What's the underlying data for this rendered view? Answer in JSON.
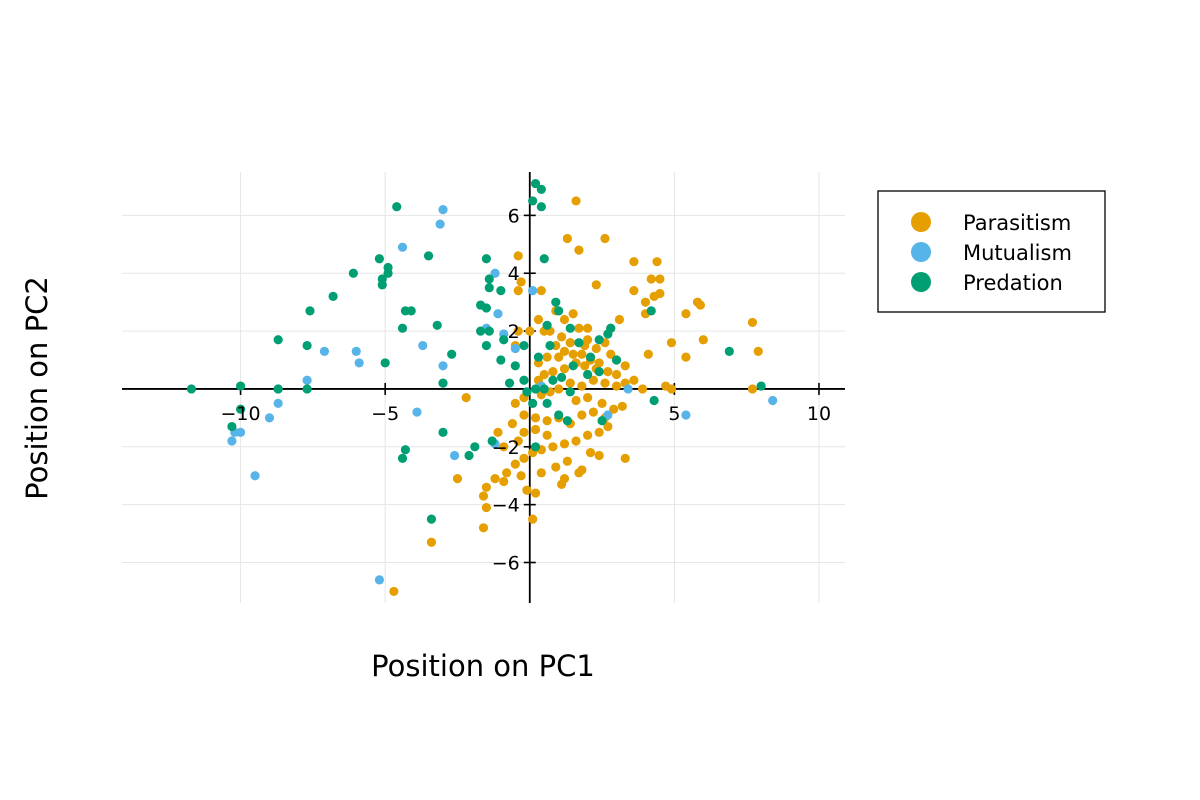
{
  "chart_data": {
    "type": "scatter",
    "title": "",
    "xlabel": "Position on PC1",
    "ylabel": "Position on PC2",
    "xlim": [
      -14.1,
      10.9
    ],
    "ylim": [
      -7.4,
      7.5
    ],
    "xticks": [
      -10,
      -5,
      5,
      10
    ],
    "xtick_labels": [
      "−10",
      "−5",
      "5",
      "10"
    ],
    "yticks": [
      -6,
      -4,
      -2,
      2,
      4,
      6
    ],
    "ytick_labels": [
      "−6",
      "−4",
      "−2",
      "2",
      "4",
      "6"
    ],
    "grid": true,
    "axes_through_origin": true,
    "legend_position": "outside-right-top",
    "series": [
      {
        "name": "Parasitism",
        "color": "#e69f00",
        "points": [
          [
            1.6,
            6.5
          ],
          [
            2.6,
            5.2
          ],
          [
            1.3,
            5.2
          ],
          [
            1.7,
            4.8
          ],
          [
            3.6,
            4.4
          ],
          [
            4.4,
            4.4
          ],
          [
            4.2,
            3.8
          ],
          [
            4.5,
            3.8
          ],
          [
            2.3,
            3.6
          ],
          [
            3.6,
            3.4
          ],
          [
            4.3,
            3.2
          ],
          [
            4.5,
            3.3
          ],
          [
            4.0,
            3.0
          ],
          [
            5.8,
            3.0
          ],
          [
            5.9,
            2.9
          ],
          [
            4.0,
            2.6
          ],
          [
            5.4,
            2.6
          ],
          [
            7.7,
            2.3
          ],
          [
            3.1,
            2.4
          ],
          [
            2.8,
            2.1
          ],
          [
            1.5,
            2.6
          ],
          [
            1.2,
            2.4
          ],
          [
            0.9,
            2.7
          ],
          [
            0.3,
            2.4
          ],
          [
            0.7,
            2.0
          ],
          [
            1.1,
            1.8
          ],
          [
            1.4,
            1.6
          ],
          [
            1.7,
            2.1
          ],
          [
            2.0,
            1.7
          ],
          [
            2.6,
            1.6
          ],
          [
            1.9,
            1.5
          ],
          [
            1.2,
            1.3
          ],
          [
            0.9,
            1.5
          ],
          [
            0.6,
            1.1
          ],
          [
            0.3,
            0.9
          ],
          [
            1.0,
            1.1
          ],
          [
            1.5,
            1.2
          ],
          [
            1.8,
            1.2
          ],
          [
            2.1,
            1.0
          ],
          [
            2.4,
            0.9
          ],
          [
            2.8,
            1.2
          ],
          [
            3.0,
            1.0
          ],
          [
            3.3,
            0.8
          ],
          [
            3.0,
            0.5
          ],
          [
            2.7,
            0.6
          ],
          [
            2.3,
            0.7
          ],
          [
            1.9,
            0.8
          ],
          [
            1.6,
            0.9
          ],
          [
            1.2,
            0.7
          ],
          [
            0.8,
            0.6
          ],
          [
            0.5,
            0.5
          ],
          [
            0.3,
            0.3
          ],
          [
            4.1,
            1.2
          ],
          [
            4.9,
            1.6
          ],
          [
            5.4,
            1.1
          ],
          [
            6.0,
            1.7
          ],
          [
            7.9,
            1.3
          ],
          [
            7.7,
            0.0
          ],
          [
            4.7,
            0.1
          ],
          [
            4.9,
            0.0
          ],
          [
            3.9,
            0.0
          ],
          [
            3.6,
            0.3
          ],
          [
            3.3,
            0.2
          ],
          [
            3.0,
            0.1
          ],
          [
            2.6,
            0.2
          ],
          [
            2.2,
            0.3
          ],
          [
            1.8,
            0.1
          ],
          [
            1.4,
            0.2
          ],
          [
            1.0,
            0.0
          ],
          [
            0.7,
            -0.1
          ],
          [
            0.4,
            -0.2
          ],
          [
            -0.2,
            -0.3
          ],
          [
            -0.5,
            -0.5
          ],
          [
            -0.2,
            -0.9
          ],
          [
            0.2,
            -1.0
          ],
          [
            0.6,
            -1.1
          ],
          [
            1.0,
            -1.0
          ],
          [
            1.4,
            -1.2
          ],
          [
            1.8,
            -0.9
          ],
          [
            2.2,
            -0.8
          ],
          [
            2.6,
            -1.0
          ],
          [
            2.9,
            -0.7
          ],
          [
            3.2,
            -0.6
          ],
          [
            2.7,
            -1.3
          ],
          [
            2.4,
            -1.5
          ],
          [
            2.0,
            -1.6
          ],
          [
            1.6,
            -1.8
          ],
          [
            1.2,
            -1.9
          ],
          [
            0.8,
            -2.0
          ],
          [
            0.4,
            -2.1
          ],
          [
            0.1,
            -2.2
          ],
          [
            -0.2,
            -2.4
          ],
          [
            -0.5,
            -2.6
          ],
          [
            -0.8,
            -2.9
          ],
          [
            -1.2,
            -3.1
          ],
          [
            -1.5,
            -3.4
          ],
          [
            -1.6,
            -3.7
          ],
          [
            -1.5,
            -4.1
          ],
          [
            -1.6,
            -4.8
          ],
          [
            -2.5,
            -3.1
          ],
          [
            -3.4,
            -5.3
          ],
          [
            -4.7,
            -7.0
          ],
          [
            0.1,
            -4.5
          ],
          [
            0.2,
            -3.6
          ],
          [
            -0.1,
            -3.5
          ],
          [
            -0.9,
            -3.2
          ],
          [
            -0.3,
            -3.0
          ],
          [
            0.4,
            -2.9
          ],
          [
            0.9,
            -2.7
          ],
          [
            1.3,
            -2.5
          ],
          [
            1.7,
            -2.9
          ],
          [
            1.8,
            -2.8
          ],
          [
            2.1,
            -2.2
          ],
          [
            2.4,
            -2.3
          ],
          [
            3.3,
            -2.4
          ],
          [
            1.1,
            -3.3
          ],
          [
            1.2,
            -3.1
          ],
          [
            0.6,
            -1.6
          ],
          [
            0.2,
            -1.4
          ],
          [
            -0.2,
            -1.5
          ],
          [
            -0.6,
            -1.2
          ],
          [
            -1.1,
            -1.5
          ],
          [
            -0.9,
            -2.0
          ],
          [
            -0.4,
            -1.8
          ],
          [
            1.6,
            -0.4
          ],
          [
            2.0,
            -0.3
          ],
          [
            2.5,
            -0.5
          ],
          [
            -2.2,
            -0.3
          ],
          [
            -0.5,
            1.5
          ],
          [
            0.0,
            2.0
          ],
          [
            -0.4,
            2.0
          ],
          [
            -0.4,
            3.4
          ],
          [
            -0.3,
            3.7
          ],
          [
            0.4,
            3.4
          ],
          [
            -0.4,
            4.6
          ],
          [
            2.0,
            2.1
          ],
          [
            2.3,
            1.4
          ],
          [
            1.4,
            1.6
          ],
          [
            0.5,
            2.0
          ]
        ]
      },
      {
        "name": "Mutualism",
        "color": "#56b4e9",
        "points": [
          [
            -3.0,
            6.2
          ],
          [
            -3.1,
            5.7
          ],
          [
            -4.4,
            4.9
          ],
          [
            -1.2,
            4.0
          ],
          [
            0.1,
            3.4
          ],
          [
            -1.1,
            2.6
          ],
          [
            -1.5,
            2.1
          ],
          [
            -0.9,
            1.9
          ],
          [
            -0.5,
            1.4
          ],
          [
            -3.7,
            1.5
          ],
          [
            -6.0,
            1.3
          ],
          [
            -5.9,
            0.9
          ],
          [
            -7.1,
            1.3
          ],
          [
            -3.0,
            0.8
          ],
          [
            -7.7,
            0.3
          ],
          [
            -8.7,
            0.0
          ],
          [
            -8.7,
            -0.5
          ],
          [
            -9.0,
            -1.0
          ],
          [
            -10.0,
            -1.5
          ],
          [
            -10.2,
            -1.5
          ],
          [
            -10.3,
            -1.8
          ],
          [
            -9.5,
            -3.0
          ],
          [
            -3.9,
            -0.8
          ],
          [
            -2.6,
            -2.3
          ],
          [
            -5.2,
            -6.6
          ],
          [
            -1.2,
            -1.9
          ],
          [
            0.4,
            0.1
          ],
          [
            3.4,
            0.0
          ],
          [
            2.7,
            -0.9
          ],
          [
            5.4,
            -0.9
          ],
          [
            8.4,
            -0.4
          ]
        ]
      },
      {
        "name": "Predation",
        "color": "#009e73",
        "points": [
          [
            0.2,
            7.1
          ],
          [
            0.4,
            6.9
          ],
          [
            0.1,
            6.5
          ],
          [
            0.4,
            6.3
          ],
          [
            -4.6,
            6.3
          ],
          [
            0.5,
            4.5
          ],
          [
            -1.5,
            4.5
          ],
          [
            -3.5,
            4.6
          ],
          [
            -6.1,
            4.0
          ],
          [
            -5.2,
            4.5
          ],
          [
            -4.9,
            4.2
          ],
          [
            -4.9,
            4.0
          ],
          [
            -5.1,
            3.8
          ],
          [
            -5.1,
            3.6
          ],
          [
            -1.0,
            3.4
          ],
          [
            -1.4,
            3.8
          ],
          [
            -1.4,
            3.5
          ],
          [
            -6.8,
            3.2
          ],
          [
            -7.6,
            2.7
          ],
          [
            -4.3,
            2.7
          ],
          [
            -4.1,
            2.7
          ],
          [
            -4.4,
            2.1
          ],
          [
            -3.2,
            2.2
          ],
          [
            -1.7,
            2.9
          ],
          [
            -1.5,
            2.8
          ],
          [
            -1.4,
            2.0
          ],
          [
            -1.7,
            2.0
          ],
          [
            -1.5,
            1.5
          ],
          [
            -0.9,
            1.7
          ],
          [
            -0.2,
            1.5
          ],
          [
            0.3,
            1.1
          ],
          [
            0.7,
            1.5
          ],
          [
            0.6,
            2.2
          ],
          [
            0.9,
            3.0
          ],
          [
            1.0,
            2.7
          ],
          [
            1.4,
            2.1
          ],
          [
            1.7,
            1.6
          ],
          [
            2.1,
            1.1
          ],
          [
            2.4,
            1.7
          ],
          [
            2.7,
            1.9
          ],
          [
            2.8,
            2.1
          ],
          [
            3.0,
            1.0
          ],
          [
            2.4,
            0.6
          ],
          [
            2.0,
            0.5
          ],
          [
            1.5,
            0.8
          ],
          [
            1.1,
            0.4
          ],
          [
            0.8,
            0.3
          ],
          [
            0.5,
            0.0
          ],
          [
            0.2,
            0.0
          ],
          [
            -0.2,
            0.3
          ],
          [
            -0.7,
            0.2
          ],
          [
            -0.5,
            0.8
          ],
          [
            -1.0,
            1.0
          ],
          [
            -2.7,
            1.2
          ],
          [
            -5.0,
            0.9
          ],
          [
            -8.7,
            1.7
          ],
          [
            -7.7,
            1.5
          ],
          [
            -10.0,
            0.1
          ],
          [
            -11.7,
            0.0
          ],
          [
            -8.7,
            0.0
          ],
          [
            -7.7,
            0.0
          ],
          [
            -3.0,
            0.2
          ],
          [
            -10.0,
            -0.7
          ],
          [
            -10.3,
            -1.3
          ],
          [
            -4.3,
            -2.1
          ],
          [
            -4.4,
            -2.4
          ],
          [
            -3.0,
            -1.5
          ],
          [
            -1.9,
            -2.0
          ],
          [
            -2.1,
            -2.3
          ],
          [
            -1.3,
            -1.8
          ],
          [
            -3.4,
            -4.5
          ],
          [
            0.6,
            -0.5
          ],
          [
            1.0,
            -0.9
          ],
          [
            1.3,
            -1.1
          ],
          [
            2.5,
            -1.1
          ],
          [
            4.3,
            -0.4
          ],
          [
            6.9,
            1.3
          ],
          [
            8.0,
            0.1
          ],
          [
            4.2,
            2.7
          ],
          [
            1.4,
            -0.1
          ],
          [
            0.1,
            -0.5
          ],
          [
            -0.1,
            -0.1
          ],
          [
            0.2,
            -2.0
          ]
        ]
      }
    ]
  }
}
